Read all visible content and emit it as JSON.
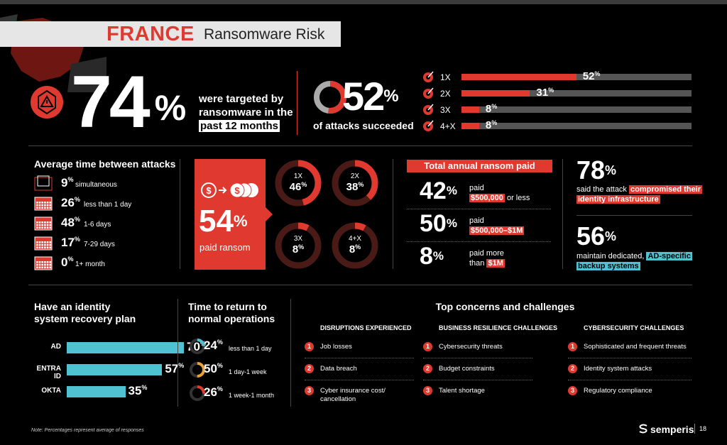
{
  "colors": {
    "accent": "#e0392f",
    "teal": "#4fc1d1",
    "gray": "#555555"
  },
  "header": {
    "country": "FRANCE",
    "subtitle": "Ransomware Risk"
  },
  "hero": {
    "value": "74",
    "unit": "%",
    "line1": "were targeted by",
    "line2": "ransomware in the",
    "highlight": "past 12 months"
  },
  "success": {
    "value": "52",
    "unit": "%",
    "label": "of attacks succeeded",
    "fraction": 0.52
  },
  "attack_bars": [
    {
      "label": "1X",
      "value": "52",
      "unit": "%",
      "fraction": 0.52
    },
    {
      "label": "2X",
      "value": "31",
      "unit": "%",
      "fraction": 0.31
    },
    {
      "label": "3X",
      "value": "8",
      "unit": "%",
      "fraction": 0.08
    },
    {
      "label": "4+X",
      "value": "8",
      "unit": "%",
      "fraction": 0.08
    }
  ],
  "avg_time": {
    "title": "Average time between attacks",
    "items": [
      {
        "value": "9",
        "unit": "%",
        "label": "simultaneous"
      },
      {
        "value": "26",
        "unit": "%",
        "label": "less than 1 day"
      },
      {
        "value": "48",
        "unit": "%",
        "label": "1-6 days"
      },
      {
        "value": "17",
        "unit": "%",
        "label": "7-29 days"
      },
      {
        "value": "0",
        "unit": "%",
        "label": "1+ month"
      }
    ]
  },
  "paid": {
    "value": "54",
    "unit": "%",
    "label": "paid ransom",
    "donuts": [
      {
        "label": "1X",
        "value": "46",
        "unit": "%",
        "fraction": 0.46
      },
      {
        "label": "2X",
        "value": "38",
        "unit": "%",
        "fraction": 0.38
      },
      {
        "label": "3X",
        "value": "8",
        "unit": "%",
        "fraction": 0.08
      },
      {
        "label": "4+X",
        "value": "8",
        "unit": "%",
        "fraction": 0.08
      }
    ]
  },
  "ransom_paid": {
    "title": "Total annual ransom paid",
    "rows": [
      {
        "value": "42",
        "unit": "%",
        "pre": "paid",
        "tag": "$500,000",
        "post": "or less"
      },
      {
        "value": "50",
        "unit": "%",
        "pre": "paid",
        "tag": "$500,000–$1M",
        "post": ""
      },
      {
        "value": "8",
        "unit": "%",
        "pre": "paid more",
        "pre2": "than",
        "tag": "$1M",
        "post": ""
      }
    ]
  },
  "identity": {
    "a": {
      "value": "78",
      "unit": "%",
      "text": "said the attack",
      "tag1": "compromised their",
      "tag2": "identity infrastructure"
    },
    "b": {
      "value": "56",
      "unit": "%",
      "text": "maintain dedicated,",
      "tag1": "AD-specific",
      "tag2": "backup systems"
    }
  },
  "recovery": {
    "title1": "Have an identity",
    "title2": "system recovery plan",
    "bars": [
      {
        "label": "AD",
        "value": "70",
        "unit": "%",
        "fraction": 0.7
      },
      {
        "label": "ENTRA ID",
        "value": "57",
        "unit": "%",
        "fraction": 0.57
      },
      {
        "label": "OKTA",
        "value": "35",
        "unit": "%",
        "fraction": 0.35
      }
    ]
  },
  "return": {
    "title1": "Time to return to",
    "title2": "normal operations",
    "items": [
      {
        "value": "24",
        "unit": "%",
        "label": "less than 1 day",
        "fraction": 0.24,
        "color": "#4fc1d1"
      },
      {
        "value": "50",
        "unit": "%",
        "label": "1 day-1 week",
        "fraction": 0.5,
        "color": "#e8a23a"
      },
      {
        "value": "26",
        "unit": "%",
        "label": "1 week-1 month",
        "fraction": 0.26,
        "color": "#e0392f"
      }
    ]
  },
  "concerns": {
    "title": "Top concerns and challenges",
    "columns": [
      {
        "header": "DISRUPTIONS EXPERIENCED",
        "items": [
          "Job losses",
          "Data breach",
          "Cyber insurance cost/",
          "cancellation"
        ]
      },
      {
        "header": "BUSINESS RESILIENCE CHALLENGES",
        "items": [
          "Cybersecurity threats",
          "Budget constraints",
          "Talent shortage"
        ]
      },
      {
        "header": "CYBERSECURITY CHALLENGES",
        "items": [
          "Sophisticated and frequent threats",
          "Identity system attacks",
          "Regulatory compliance"
        ]
      }
    ]
  },
  "footer": {
    "note": "Note: Percentages represent average of responses",
    "brand": "semperis",
    "page": "18"
  }
}
